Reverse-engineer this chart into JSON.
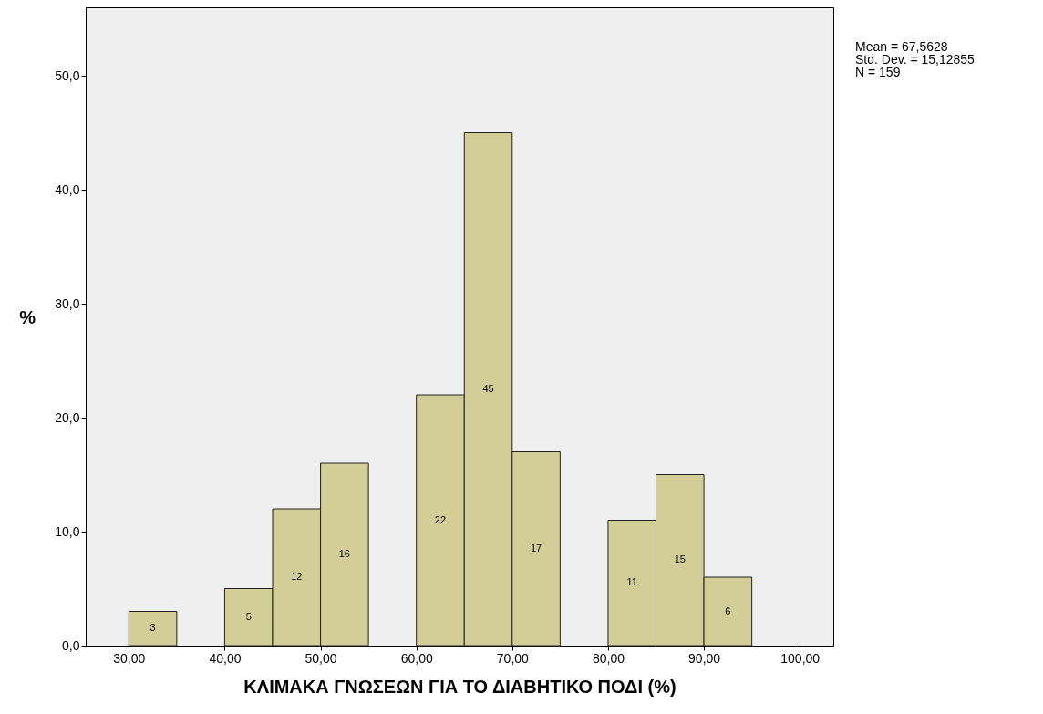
{
  "chart_data": {
    "type": "histogram",
    "xlabel": "ΚΛΙΜΑΚΑ ΓΝΩΣΕΩΝ ΓΙΑ ΤΟ ΔΙΑΒΗΤΙΚΟ ΠΟΔΙ (%)",
    "ylabel": "%",
    "bins": [
      30,
      35,
      40,
      45,
      50,
      55,
      60,
      65,
      70,
      75,
      80,
      85,
      90,
      95
    ],
    "values": [
      3,
      0,
      5,
      12,
      16,
      0,
      22,
      45,
      17,
      0,
      11,
      15,
      6
    ],
    "value_labels": [
      "3",
      null,
      "5",
      "12",
      "16",
      null,
      "22",
      "45",
      "17",
      null,
      "11",
      "15",
      "6"
    ],
    "color": "#d3ce97",
    "xlim": [
      25.5,
      103.5
    ],
    "xticks": [
      {
        "value": 30,
        "label": "30,00"
      },
      {
        "value": 40,
        "label": "40,00"
      },
      {
        "value": 50,
        "label": "50,00"
      },
      {
        "value": 60,
        "label": "60,00"
      },
      {
        "value": 70,
        "label": "70,00"
      },
      {
        "value": 80,
        "label": "80,00"
      },
      {
        "value": 90,
        "label": "90,00"
      },
      {
        "value": 100,
        "label": "100,00"
      }
    ],
    "ylim": [
      0,
      56
    ],
    "yticks": [
      {
        "value": 0,
        "label": "0,0"
      },
      {
        "value": 10,
        "label": "10,0"
      },
      {
        "value": 20,
        "label": "20,0"
      },
      {
        "value": 30,
        "label": "30,0"
      },
      {
        "value": 40,
        "label": "40,0"
      },
      {
        "value": 50,
        "label": "50,0"
      }
    ],
    "grid": false,
    "annotations": [
      "Mean = 67,5628",
      "Std. Dev. = 15,12855",
      "N = 159"
    ]
  }
}
